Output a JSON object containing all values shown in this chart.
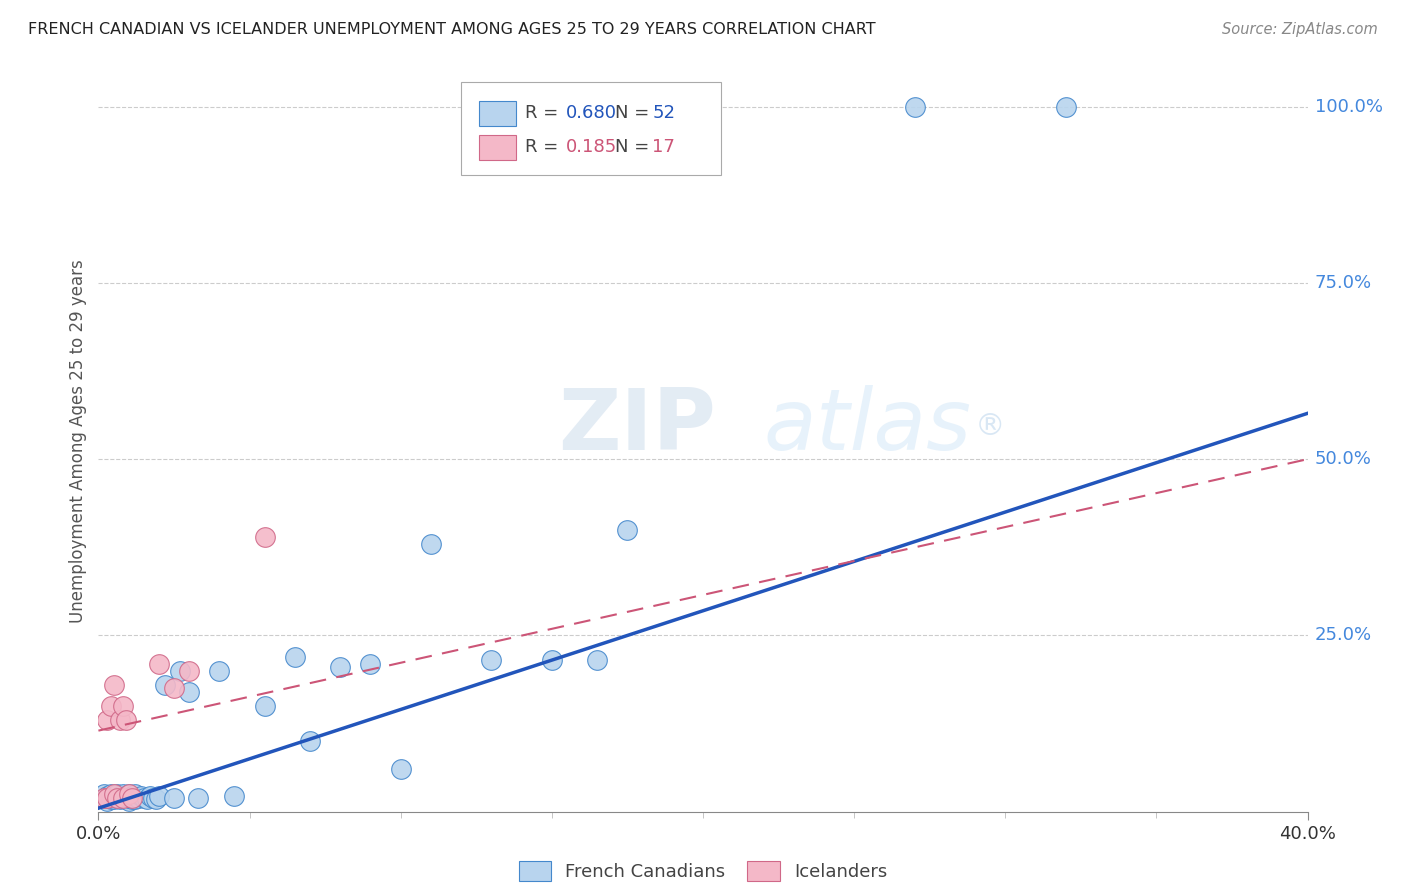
{
  "title": "FRENCH CANADIAN VS ICELANDER UNEMPLOYMENT AMONG AGES 25 TO 29 YEARS CORRELATION CHART",
  "source": "Source: ZipAtlas.com",
  "ylabel": "Unemployment Among Ages 25 to 29 years",
  "xmin": 0.0,
  "xmax": 0.4,
  "ymin": 0.0,
  "ymax": 1.05,
  "legend_blue_r": "0.680",
  "legend_blue_n": "52",
  "legend_pink_r": "0.185",
  "legend_pink_n": "17",
  "legend_label_blue": "French Canadians",
  "legend_label_pink": "Icelanders",
  "blue_fill": "#b8d4ee",
  "blue_edge": "#4488cc",
  "pink_fill": "#f4b8c8",
  "pink_edge": "#d06888",
  "blue_line_color": "#2255bb",
  "pink_line_color": "#cc5577",
  "grid_color": "#cccccc",
  "right_axis_color": "#4488dd",
  "title_color": "#222222",
  "blue_points_x": [
    0.002,
    0.002,
    0.003,
    0.003,
    0.004,
    0.004,
    0.005,
    0.005,
    0.005,
    0.006,
    0.006,
    0.007,
    0.007,
    0.008,
    0.008,
    0.009,
    0.009,
    0.01,
    0.01,
    0.01,
    0.011,
    0.011,
    0.012,
    0.012,
    0.013,
    0.014,
    0.015,
    0.016,
    0.017,
    0.018,
    0.019,
    0.02,
    0.022,
    0.025,
    0.027,
    0.03,
    0.033,
    0.04,
    0.045,
    0.055,
    0.065,
    0.07,
    0.08,
    0.09,
    0.1,
    0.11,
    0.13,
    0.15,
    0.165,
    0.175,
    0.27,
    0.32
  ],
  "blue_points_y": [
    0.02,
    0.025,
    0.015,
    0.022,
    0.018,
    0.025,
    0.02,
    0.022,
    0.018,
    0.02,
    0.025,
    0.018,
    0.022,
    0.02,
    0.025,
    0.018,
    0.022,
    0.015,
    0.02,
    0.025,
    0.018,
    0.022,
    0.018,
    0.025,
    0.02,
    0.022,
    0.02,
    0.018,
    0.022,
    0.02,
    0.018,
    0.022,
    0.18,
    0.02,
    0.2,
    0.17,
    0.02,
    0.2,
    0.022,
    0.15,
    0.22,
    0.1,
    0.205,
    0.21,
    0.06,
    0.38,
    0.215,
    0.215,
    0.215,
    0.4,
    1.0,
    1.0
  ],
  "pink_points_x": [
    0.002,
    0.003,
    0.003,
    0.004,
    0.005,
    0.005,
    0.006,
    0.007,
    0.008,
    0.008,
    0.009,
    0.01,
    0.011,
    0.02,
    0.025,
    0.03,
    0.055
  ],
  "pink_points_y": [
    0.02,
    0.13,
    0.02,
    0.15,
    0.18,
    0.025,
    0.02,
    0.13,
    0.15,
    0.02,
    0.13,
    0.025,
    0.02,
    0.21,
    0.175,
    0.2,
    0.39
  ],
  "blue_line_x": [
    0.0,
    0.4
  ],
  "blue_line_y": [
    0.005,
    0.565
  ],
  "pink_line_x": [
    0.0,
    0.4
  ],
  "pink_line_y": [
    0.115,
    0.5
  ],
  "background_color": "#ffffff"
}
